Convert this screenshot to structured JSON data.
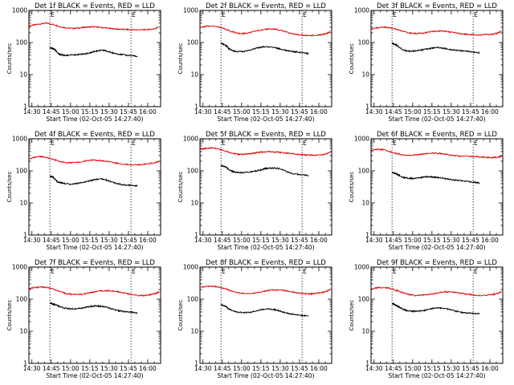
{
  "figure": {
    "background": "#ffffff",
    "axis_color": "#000000",
    "events_color": "#000000",
    "lld_color": "#e00000",
    "xlabel": "Start Time (02-Oct-05 14:27:40)",
    "ylabel": "Counts/sec",
    "x_tick_labels": [
      "14:30",
      "14:45",
      "15:00",
      "15:15",
      "15:30",
      "15:45",
      "16:00"
    ],
    "y_tick_labels": [
      "1",
      "10",
      "100",
      "1000"
    ],
    "marker_label": "E",
    "x_ticks_minutes": [
      150,
      165,
      180,
      195,
      210,
      225,
      240
    ],
    "xlim_minutes": [
      147.67,
      250
    ],
    "ylim": [
      1,
      1000
    ],
    "y_scale": "log",
    "marker_lines_minutes": [
      164,
      227
    ],
    "grid": false,
    "legend": "none"
  },
  "chart_data": [
    {
      "type": "line",
      "title": "Det 1f BLACK = Events, RED = LLD",
      "series": [
        {
          "name": "LLD",
          "color": "#e00000",
          "x": [
            147.7,
            152,
            157,
            162,
            167,
            172,
            177,
            182,
            187,
            192,
            197,
            202,
            207,
            212,
            217,
            222,
            227,
            232,
            237,
            242,
            246,
            248
          ],
          "values": [
            330,
            355,
            385,
            400,
            360,
            310,
            285,
            275,
            285,
            300,
            310,
            300,
            285,
            270,
            260,
            255,
            250,
            248,
            250,
            258,
            270,
            300
          ]
        },
        {
          "name": "Events",
          "color": "#000000",
          "x": [
            164,
            166,
            168,
            170,
            172,
            175,
            178,
            182,
            186,
            190,
            194,
            198,
            202,
            205,
            208,
            212,
            216,
            220,
            224,
            228,
            232
          ],
          "values": [
            70,
            65,
            60,
            47,
            42,
            40,
            40,
            41,
            42,
            44,
            46,
            52,
            56,
            58,
            54,
            48,
            44,
            42,
            40,
            39,
            37
          ]
        }
      ]
    },
    {
      "type": "line",
      "title": "Det 2f BLACK = Events, RED = LLD",
      "series": [
        {
          "name": "LLD",
          "color": "#e00000",
          "x": [
            147.7,
            152,
            157,
            162,
            167,
            172,
            177,
            182,
            187,
            192,
            197,
            202,
            207,
            212,
            217,
            222,
            227,
            232,
            237,
            242,
            246,
            249
          ],
          "values": [
            290,
            320,
            330,
            310,
            270,
            220,
            195,
            190,
            205,
            230,
            255,
            265,
            255,
            230,
            200,
            180,
            170,
            165,
            168,
            175,
            190,
            225
          ]
        },
        {
          "name": "Events",
          "color": "#000000",
          "x": [
            164,
            166,
            168,
            170,
            173,
            176,
            180,
            184,
            188,
            192,
            196,
            200,
            204,
            208,
            212,
            216,
            220,
            224,
            228,
            232
          ],
          "values": [
            95,
            88,
            80,
            65,
            55,
            52,
            52,
            55,
            60,
            68,
            72,
            74,
            72,
            66,
            60,
            55,
            52,
            50,
            48,
            45
          ]
        }
      ]
    },
    {
      "type": "line",
      "title": "Det 3f BLACK = Events, RED = LLD",
      "series": [
        {
          "name": "LLD",
          "color": "#e00000",
          "x": [
            147.7,
            152,
            157,
            162,
            167,
            172,
            177,
            182,
            187,
            192,
            197,
            202,
            207,
            212,
            217,
            222,
            227,
            232,
            237,
            242,
            246,
            249
          ],
          "values": [
            260,
            290,
            300,
            290,
            260,
            225,
            200,
            190,
            195,
            210,
            225,
            230,
            220,
            205,
            190,
            180,
            175,
            172,
            175,
            180,
            195,
            230
          ]
        },
        {
          "name": "Events",
          "color": "#000000",
          "x": [
            164,
            166,
            168,
            170,
            173,
            176,
            180,
            184,
            188,
            192,
            196,
            200,
            204,
            208,
            212,
            216,
            220,
            224,
            228,
            232
          ],
          "values": [
            95,
            88,
            80,
            68,
            58,
            54,
            54,
            56,
            60,
            64,
            68,
            70,
            66,
            62,
            58,
            56,
            54,
            52,
            50,
            48
          ]
        }
      ]
    },
    {
      "type": "line",
      "title": "Det 4f BLACK = Events, RED = LLD",
      "series": [
        {
          "name": "LLD",
          "color": "#e00000",
          "x": [
            147.7,
            152,
            157,
            162,
            167,
            172,
            177,
            182,
            187,
            192,
            197,
            202,
            207,
            212,
            217,
            222,
            227,
            232,
            237,
            242,
            246,
            249
          ],
          "values": [
            230,
            265,
            280,
            260,
            225,
            195,
            180,
            180,
            190,
            205,
            215,
            212,
            200,
            185,
            170,
            160,
            155,
            155,
            160,
            170,
            180,
            200
          ]
        },
        {
          "name": "Events",
          "color": "#000000",
          "x": [
            164,
            166,
            168,
            170,
            173,
            176,
            180,
            184,
            188,
            192,
            196,
            200,
            204,
            208,
            212,
            216,
            220,
            224,
            228,
            232
          ],
          "values": [
            70,
            65,
            55,
            45,
            42,
            40,
            38,
            40,
            43,
            46,
            50,
            54,
            56,
            52,
            45,
            40,
            37,
            36,
            35,
            34
          ]
        }
      ]
    },
    {
      "type": "line",
      "title": "Det 5f BLACK = Events, RED = LLD",
      "series": [
        {
          "name": "LLD",
          "color": "#e00000",
          "x": [
            147.7,
            152,
            157,
            162,
            167,
            172,
            177,
            182,
            187,
            192,
            197,
            202,
            207,
            212,
            217,
            222,
            227,
            232,
            237,
            242,
            246,
            249
          ],
          "values": [
            460,
            500,
            520,
            480,
            420,
            360,
            330,
            330,
            345,
            370,
            390,
            395,
            385,
            370,
            350,
            335,
            320,
            310,
            305,
            315,
            335,
            380
          ]
        },
        {
          "name": "Events",
          "color": "#000000",
          "x": [
            164,
            166,
            168,
            170,
            173,
            176,
            180,
            184,
            188,
            192,
            196,
            198,
            200,
            204,
            208,
            212,
            216,
            220,
            224,
            228,
            232
          ],
          "values": [
            145,
            140,
            130,
            110,
            95,
            90,
            88,
            90,
            95,
            100,
            110,
            118,
            120,
            122,
            120,
            108,
            90,
            82,
            78,
            75,
            72
          ]
        }
      ]
    },
    {
      "type": "line",
      "title": "Det 6f BLACK = Events, RED = LLD",
      "series": [
        {
          "name": "LLD",
          "color": "#e00000",
          "x": [
            147.7,
            152,
            157,
            162,
            167,
            172,
            177,
            182,
            187,
            192,
            197,
            202,
            207,
            212,
            217,
            222,
            227,
            232,
            237,
            242,
            246,
            249
          ],
          "values": [
            440,
            470,
            460,
            400,
            350,
            310,
            300,
            310,
            330,
            350,
            355,
            345,
            320,
            300,
            290,
            285,
            280,
            270,
            265,
            260,
            265,
            290
          ]
        },
        {
          "name": "Events",
          "color": "#000000",
          "x": [
            164,
            166,
            168,
            170,
            173,
            176,
            180,
            184,
            188,
            192,
            196,
            200,
            204,
            208,
            212,
            216,
            220,
            224,
            228,
            232
          ],
          "values": [
            88,
            85,
            80,
            70,
            62,
            60,
            58,
            60,
            64,
            66,
            64,
            62,
            58,
            55,
            52,
            50,
            48,
            46,
            44,
            42
          ]
        }
      ]
    },
    {
      "type": "line",
      "title": "Det 7f BLACK = Events, RED = LLD",
      "series": [
        {
          "name": "LLD",
          "color": "#e00000",
          "x": [
            147.7,
            152,
            157,
            162,
            167,
            172,
            177,
            182,
            187,
            192,
            197,
            202,
            207,
            212,
            217,
            222,
            227,
            232,
            237,
            242,
            246,
            249
          ],
          "values": [
            210,
            230,
            240,
            230,
            205,
            170,
            150,
            140,
            140,
            150,
            165,
            180,
            185,
            180,
            170,
            155,
            140,
            130,
            130,
            138,
            150,
            170
          ]
        },
        {
          "name": "Events",
          "color": "#000000",
          "x": [
            164,
            166,
            168,
            170,
            173,
            176,
            180,
            184,
            188,
            192,
            196,
            200,
            204,
            208,
            212,
            216,
            220,
            224,
            228,
            232
          ],
          "values": [
            75,
            72,
            68,
            62,
            56,
            52,
            50,
            50,
            52,
            56,
            60,
            62,
            60,
            56,
            50,
            45,
            42,
            40,
            39,
            37
          ]
        }
      ]
    },
    {
      "type": "line",
      "title": "Det 8f BLACK = Events, RED = LLD",
      "series": [
        {
          "name": "LLD",
          "color": "#e00000",
          "x": [
            147.7,
            152,
            157,
            162,
            167,
            172,
            177,
            182,
            187,
            192,
            197,
            202,
            207,
            212,
            217,
            222,
            227,
            232,
            237,
            242,
            246,
            249
          ],
          "values": [
            230,
            250,
            255,
            240,
            215,
            180,
            160,
            150,
            150,
            160,
            175,
            190,
            195,
            190,
            175,
            160,
            150,
            145,
            150,
            160,
            175,
            200
          ]
        },
        {
          "name": "Events",
          "color": "#000000",
          "x": [
            164,
            166,
            168,
            170,
            173,
            176,
            180,
            184,
            188,
            192,
            196,
            200,
            204,
            208,
            212,
            216,
            220,
            224,
            228,
            232
          ],
          "values": [
            68,
            64,
            58,
            50,
            44,
            40,
            38,
            38,
            40,
            44,
            48,
            50,
            48,
            45,
            40,
            36,
            34,
            32,
            31,
            30
          ]
        }
      ]
    },
    {
      "type": "line",
      "title": "Det 9f BLACK = Events, RED = LLD",
      "series": [
        {
          "name": "LLD",
          "color": "#e00000",
          "x": [
            147.7,
            152,
            157,
            162,
            167,
            172,
            177,
            182,
            187,
            192,
            197,
            202,
            207,
            212,
            217,
            222,
            227,
            232,
            237,
            242,
            246,
            249
          ],
          "values": [
            200,
            225,
            235,
            220,
            190,
            160,
            140,
            130,
            132,
            140,
            150,
            165,
            170,
            165,
            155,
            145,
            135,
            130,
            132,
            140,
            150,
            170
          ]
        },
        {
          "name": "Events",
          "color": "#000000",
          "x": [
            164,
            166,
            168,
            170,
            173,
            176,
            180,
            184,
            188,
            192,
            196,
            200,
            204,
            208,
            212,
            216,
            220,
            224,
            228,
            232
          ],
          "values": [
            72,
            68,
            62,
            55,
            48,
            44,
            42,
            42,
            44,
            48,
            52,
            54,
            52,
            48,
            44,
            40,
            38,
            37,
            36,
            36
          ]
        }
      ]
    }
  ]
}
